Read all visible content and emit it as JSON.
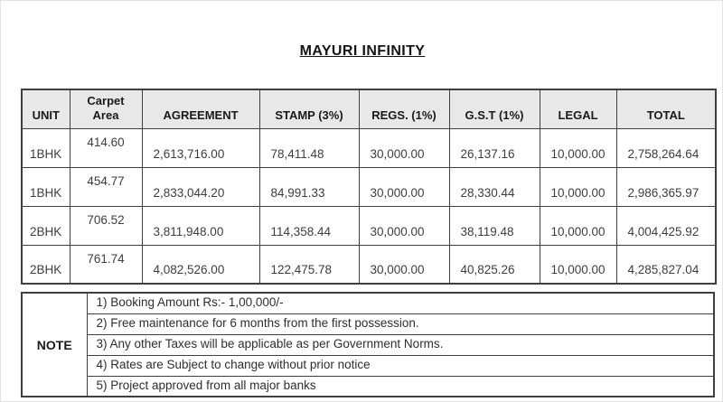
{
  "title": "MAYURI INFINITY",
  "pricing_table": {
    "columns": [
      "UNIT",
      "Carpet\nArea",
      "AGREEMENT",
      "STAMP (3%)",
      "REGS. (1%)",
      "G.S.T (1%)",
      "LEGAL",
      "TOTAL"
    ],
    "column_keys": [
      "unit",
      "carpet-area",
      "agreement",
      "stamp",
      "regs",
      "gst",
      "legal",
      "total"
    ],
    "rows": [
      [
        "1BHK",
        "414.60",
        "2,613,716.00",
        "78,411.48",
        "30,000.00",
        "26,137.16",
        "10,000.00",
        "2,758,264.64"
      ],
      [
        "1BHK",
        "454.77",
        "2,833,044.20",
        "84,991.33",
        "30,000.00",
        "28,330.44",
        "10,000.00",
        "2,986,365.97"
      ],
      [
        "2BHK",
        "706.52",
        "3,811,948.00",
        "114,358.44",
        "30,000.00",
        "38,119.48",
        "10,000.00",
        "4,004,425.92"
      ],
      [
        "2BHK",
        "761.74",
        "4,082,526.00",
        "122,475.78",
        "30,000.00",
        "40,825.26",
        "10,000.00",
        "4,285,827.04"
      ]
    ]
  },
  "note": {
    "label": "NOTE",
    "items": [
      "1) Booking Amount Rs:- 1,00,000/-",
      "2) Free maintenance for 6 months from the first possession.",
      "3) Any other Taxes will be applicable as per Government Norms.",
      "4) Rates are Subject to change without prior notice",
      "5) Project approved from all major banks"
    ]
  },
  "colors": {
    "header_bg": "#e8e8e8",
    "border": "#3f3f3f",
    "text": "#3d3d3d"
  }
}
